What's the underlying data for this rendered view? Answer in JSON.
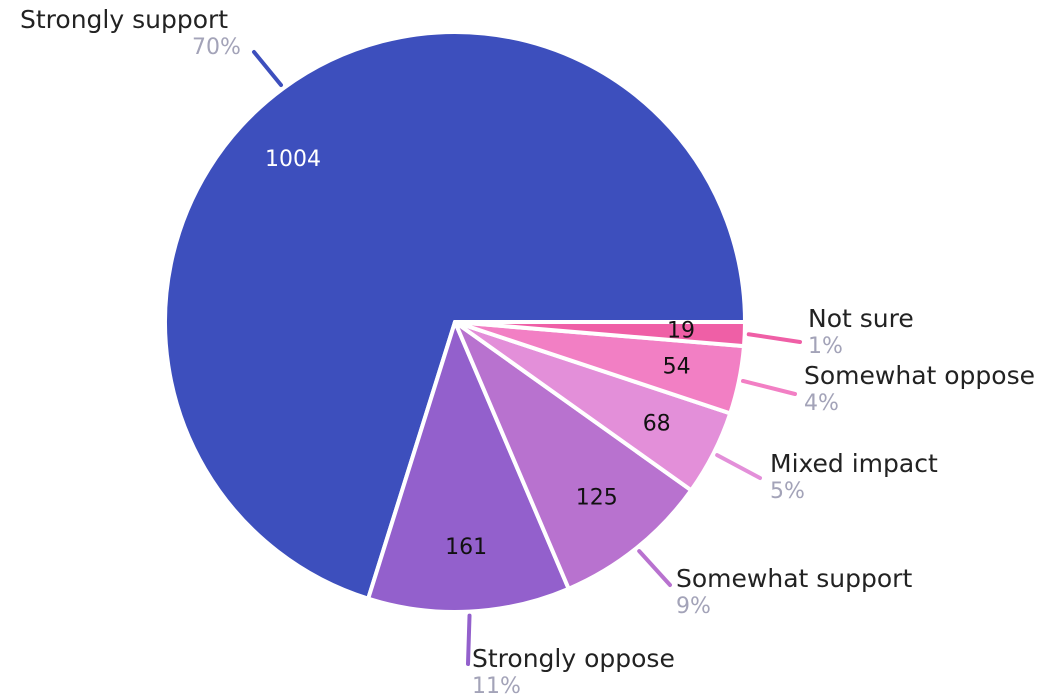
{
  "chart_data": {
    "type": "pie",
    "slices": [
      {
        "label": "Strongly support",
        "value": 1004,
        "percent": "70%",
        "color": "#3d4fbd",
        "value_color": "#ffffff"
      },
      {
        "label": "Strongly oppose",
        "value": 161,
        "percent": "11%",
        "color": "#9360cc",
        "value_color": "#111111"
      },
      {
        "label": "Somewhat support",
        "value": 125,
        "percent": "9%",
        "color": "#b872cf",
        "value_color": "#111111"
      },
      {
        "label": "Mixed impact",
        "value": 68,
        "percent": "5%",
        "color": "#e38fd9",
        "value_color": "#111111"
      },
      {
        "label": "Somewhat oppose",
        "value": 54,
        "percent": "4%",
        "color": "#f27fc4",
        "value_color": "#111111"
      },
      {
        "label": "Not sure",
        "value": 19,
        "percent": "1%",
        "color": "#ef5fa6",
        "value_color": "#111111"
      }
    ],
    "legend": "none"
  }
}
